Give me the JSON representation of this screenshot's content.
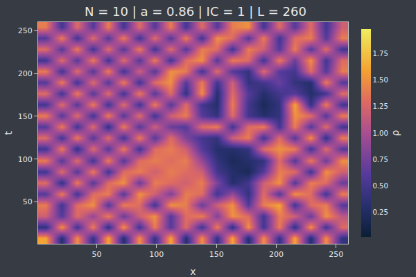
{
  "chart_data": {
    "type": "heatmap",
    "title": "N = 10 | a = 0.86 | IC = 1 | L = 260",
    "x_label": "x",
    "y_label": "t",
    "colorbar_title": "ρ",
    "xlim": [
      1,
      260
    ],
    "ylim": [
      1,
      260
    ],
    "xticks": [
      50,
      100,
      150,
      200,
      250
    ],
    "yticks": [
      50,
      100,
      150,
      200,
      250
    ],
    "grid": false,
    "colorbar_range": [
      0.02,
      1.98
    ],
    "colorbar_ticks": [
      {
        "value": 0.25,
        "label": "0.25"
      },
      {
        "value": 0.5,
        "label": "0.50"
      },
      {
        "value": 0.75,
        "label": "0.75"
      },
      {
        "value": 1,
        "label": "1.00"
      },
      {
        "value": 1.25,
        "label": "1.25"
      },
      {
        "value": 1.5,
        "label": "1.50"
      },
      {
        "value": 1.75,
        "label": "1.75"
      }
    ],
    "x": [
      7.5,
      20.5,
      33.5,
      46.5,
      59.5,
      72.5,
      85.5,
      98.5,
      111.5,
      124.5,
      137.5,
      150.5,
      163.5,
      176.5,
      189.5,
      202.5,
      215.5,
      228.5,
      241.5,
      254.5
    ],
    "y": [
      7.5,
      20.5,
      33.5,
      46.5,
      59.5,
      72.5,
      85.5,
      98.5,
      111.5,
      124.5,
      137.5,
      150.5,
      163.5,
      176.5,
      189.5,
      202.5,
      215.5,
      228.5,
      241.5,
      254.5
    ],
    "z": [
      [
        1.6,
        0.3,
        1.5,
        0.4,
        1.6,
        0.3,
        1.5,
        0.4,
        1.6,
        0.3,
        1.5,
        0.4,
        1.6,
        0.3,
        1.5,
        0.4,
        1.6,
        0.3,
        1.5,
        0.4
      ],
      [
        0.4,
        1.5,
        0.5,
        1.4,
        0.4,
        1.5,
        0.5,
        1.4,
        0.6,
        1.3,
        0.5,
        1.4,
        0.4,
        1.5,
        0.5,
        1.4,
        0.4,
        1.5,
        0.5,
        1.3
      ],
      [
        1.2,
        0.6,
        1.3,
        0.9,
        1.4,
        0.7,
        1.2,
        1.5,
        0.6,
        1.3,
        1.4,
        0.8,
        1.5,
        1.3,
        0.5,
        1.4,
        1.2,
        0.7,
        1.5,
        1.1
      ],
      [
        1.4,
        0.5,
        1.3,
        1.5,
        0.6,
        1.4,
        1.3,
        0.5,
        1.5,
        1.4,
        0.7,
        1.2,
        1.5,
        0.6,
        1.4,
        1.6,
        0.5,
        1.3,
        1.4,
        0.6
      ],
      [
        0.6,
        1.4,
        0.5,
        1.3,
        1.4,
        0.6,
        1.5,
        1.2,
        0.8,
        1.4,
        1.3,
        0.5,
        0.9,
        0.4,
        1.3,
        0.6,
        1.5,
        1.3,
        0.5,
        1.4
      ],
      [
        1.3,
        0.4,
        1.4,
        0.6,
        1.3,
        1.5,
        0.7,
        1.4,
        1.3,
        1.2,
        1.4,
        0.8,
        0.3,
        0.5,
        1.2,
        1.5,
        0.6,
        1.4,
        1.3,
        0.7
      ],
      [
        0.5,
        1.3,
        0.6,
        1.4,
        0.5,
        1.3,
        1.4,
        1.2,
        1.4,
        1.3,
        1.2,
        0.5,
        0.3,
        0.2,
        0.6,
        1.4,
        1.3,
        0.5,
        1.5,
        1.2
      ],
      [
        1.4,
        0.6,
        1.3,
        0.5,
        1.4,
        0.6,
        1.3,
        1.4,
        1.3,
        1.4,
        0.9,
        0.4,
        0.2,
        0.3,
        0.4,
        1.3,
        0.6,
        1.4,
        0.7,
        1.5
      ],
      [
        0.5,
        1.4,
        0.4,
        1.3,
        0.6,
        1.4,
        0.5,
        1.3,
        1.4,
        1.2,
        0.6,
        0.3,
        0.3,
        0.4,
        1.3,
        1.5,
        1.4,
        0.5,
        1.3,
        0.6
      ],
      [
        1.3,
        0.5,
        1.4,
        0.6,
        1.3,
        0.5,
        1.4,
        0.6,
        1.3,
        0.8,
        0.5,
        0.4,
        1.2,
        1.4,
        0.5,
        1.3,
        0.6,
        1.5,
        0.4,
        1.4
      ],
      [
        0.6,
        1.4,
        0.5,
        1.3,
        0.4,
        1.4,
        0.6,
        1.2,
        0.7,
        0.6,
        1.3,
        1.4,
        0.5,
        1.3,
        1.4,
        0.5,
        1.4,
        0.6,
        1.3,
        0.5
      ],
      [
        1.4,
        0.6,
        1.3,
        0.5,
        1.4,
        0.6,
        1.3,
        0.5,
        1.2,
        1.4,
        0.6,
        0.4,
        1.3,
        0.5,
        0.3,
        0.4,
        1.5,
        1.3,
        0.6,
        1.4
      ],
      [
        0.5,
        1.3,
        0.6,
        1.4,
        0.5,
        1.3,
        0.5,
        1.4,
        0.6,
        1.3,
        0.5,
        0.3,
        1.4,
        0.5,
        0.2,
        0.4,
        1.6,
        0.4,
        1.4,
        0.5
      ],
      [
        1.3,
        0.5,
        1.4,
        0.6,
        1.3,
        0.5,
        1.4,
        0.6,
        1.3,
        0.4,
        1.5,
        0.3,
        1.3,
        0.6,
        0.3,
        0.5,
        0.6,
        0.3,
        0.5,
        1.3
      ],
      [
        0.6,
        1.4,
        0.5,
        1.3,
        0.6,
        1.4,
        0.5,
        1.3,
        1.5,
        0.6,
        1.4,
        0.5,
        1.2,
        0.4,
        0.5,
        0.7,
        0.4,
        0.3,
        1.4,
        0.6
      ],
      [
        1.4,
        0.5,
        1.3,
        0.6,
        1.4,
        0.5,
        1.2,
        0.6,
        1.5,
        1.4,
        0.5,
        1.3,
        0.6,
        0.4,
        1.3,
        0.6,
        0.5,
        1.3,
        0.6,
        1.4
      ],
      [
        0.5,
        1.3,
        0.6,
        1.4,
        0.5,
        1.3,
        0.6,
        1.4,
        0.5,
        1.3,
        1.5,
        0.6,
        1.4,
        1.3,
        0.5,
        1.4,
        0.7,
        1.5,
        0.5,
        1.3
      ],
      [
        1.3,
        0.6,
        1.4,
        0.5,
        1.3,
        0.6,
        1.4,
        0.5,
        1.3,
        0.6,
        1.4,
        1.3,
        0.5,
        1.4,
        1.2,
        0.6,
        1.4,
        0.6,
        1.3,
        0.5
      ],
      [
        0.6,
        1.4,
        0.5,
        1.3,
        0.6,
        1.4,
        0.5,
        1.3,
        0.6,
        1.4,
        0.5,
        1.5,
        1.3,
        0.6,
        1.4,
        0.5,
        1.3,
        1.4,
        0.6,
        1.4
      ],
      [
        1.4,
        0.5,
        1.3,
        0.6,
        1.4,
        0.5,
        1.3,
        0.6,
        1.4,
        0.5,
        1.3,
        0.6,
        1.4,
        1.5,
        0.5,
        1.3,
        0.6,
        1.3,
        0.5,
        1.2
      ]
    ]
  }
}
